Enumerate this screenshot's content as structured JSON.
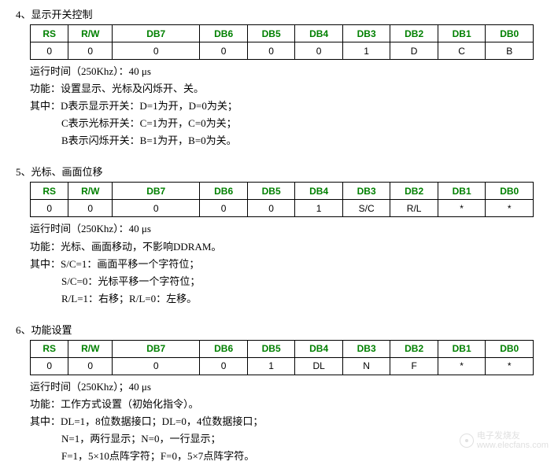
{
  "sections": [
    {
      "title": "4、显示开关控制",
      "table": {
        "headers": [
          "RS",
          "R/W",
          "DB7",
          "DB6",
          "DB5",
          "DB4",
          "DB3",
          "DB2",
          "DB1",
          "DB0"
        ],
        "row": [
          "0",
          "0",
          "0",
          "0",
          "0",
          "0",
          "1",
          "D",
          "C",
          "B"
        ]
      },
      "runtime": "运行时间（250Khz）：40  μs",
      "func": "功能：设置显示、光标及闪烁开、关。",
      "where_label": "其中：",
      "where": [
        "D表示显示开关：D=1为开，D=0为关；",
        "C表示光标开关：C=1为开，C=0为关；",
        "B表示闪烁开关：B=1为开，B=0为关。"
      ]
    },
    {
      "title": "5、光标、画面位移",
      "table": {
        "headers": [
          "RS",
          "R/W",
          "DB7",
          "DB6",
          "DB5",
          "DB4",
          "DB3",
          "DB2",
          "DB1",
          "DB0"
        ],
        "row": [
          "0",
          "0",
          "0",
          "0",
          "0",
          "1",
          "S/C",
          "R/L",
          "*",
          "*"
        ]
      },
      "runtime": "运行时间（250Khz）：40  μs",
      "func": "功能：光标、画面移动，不影响DDRAM。",
      "where_label": "其中：",
      "where": [
        "S/C=1：画面平移一个字符位；",
        "S/C=0：光标平移一个字符位；",
        "R/L=1：右移；R/L=0：左移。"
      ]
    },
    {
      "title": "6、功能设置",
      "table": {
        "headers": [
          "RS",
          "R/W",
          "DB7",
          "DB6",
          "DB5",
          "DB4",
          "DB3",
          "DB2",
          "DB1",
          "DB0"
        ],
        "row": [
          "0",
          "0",
          "0",
          "0",
          "1",
          "DL",
          "N",
          "F",
          "*",
          "*"
        ]
      },
      "runtime": "运行时间（250Khz）；40  μs",
      "func": "功能：工作方式设置（初始化指令）。",
      "where_label": "其中：",
      "where": [
        "DL=1，8位数据接口；DL=0，4位数据接口；",
        "N=1，两行显示；N=0，一行显示；",
        "F=1，5×10点阵字符；F=0，5×7点阵字符。"
      ]
    }
  ],
  "watermark": {
    "line1": "电子发烧友",
    "line2": "www.elecfans.com"
  },
  "colors": {
    "header_text": "#008000",
    "border": "#000000",
    "text": "#000000",
    "watermark": "#e0e0e0",
    "background": "#ffffff"
  }
}
